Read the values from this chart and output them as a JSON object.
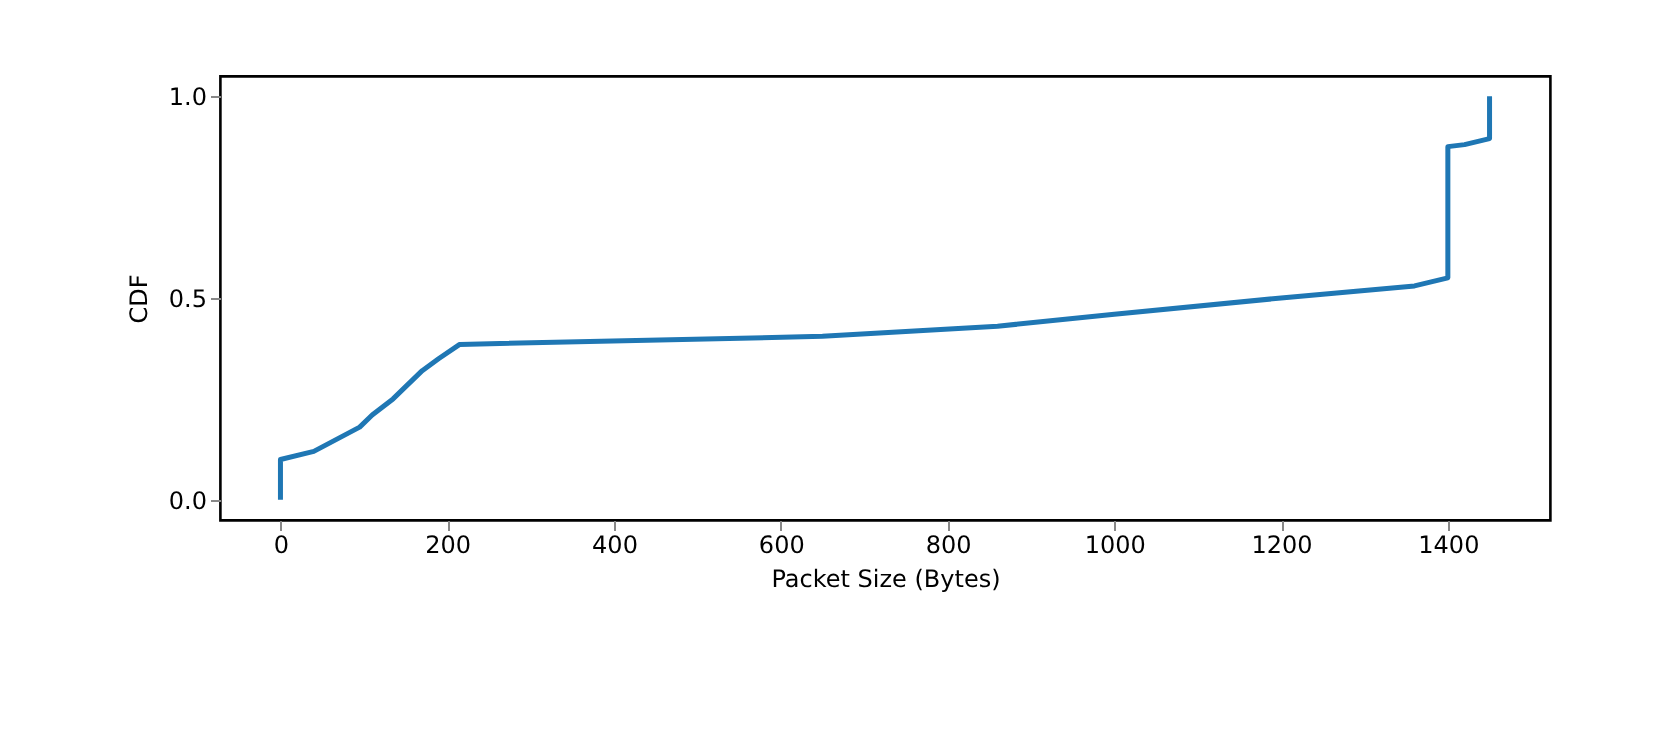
{
  "chart_data": {
    "type": "line",
    "xlabel": "Packet Size (Bytes)",
    "ylabel": "CDF",
    "x": [
      0,
      0,
      40,
      95,
      110,
      135,
      170,
      190,
      215,
      650,
      860,
      1000,
      1200,
      1360,
      1400,
      1400,
      1420,
      1450,
      1450
    ],
    "series": [
      {
        "color": "#1f77b4",
        "values": [
          0.0,
          0.1,
          0.12,
          0.18,
          0.21,
          0.25,
          0.32,
          0.35,
          0.385,
          0.405,
          0.43,
          0.46,
          0.5,
          0.53,
          0.55,
          0.875,
          0.88,
          0.895,
          1.0
        ]
      }
    ],
    "xlim": [
      -72.5,
      1522.5
    ],
    "ylim": [
      -0.05,
      1.05
    ],
    "xticks": [
      0,
      200,
      400,
      600,
      800,
      1000,
      1200,
      1400
    ],
    "yticks": [
      {
        "value": 0,
        "label": "0.0"
      },
      {
        "value": 0.5,
        "label": "0.5"
      },
      {
        "value": 1,
        "label": "1.0"
      }
    ],
    "grid": false,
    "marker": "none",
    "line_style": "solid"
  }
}
